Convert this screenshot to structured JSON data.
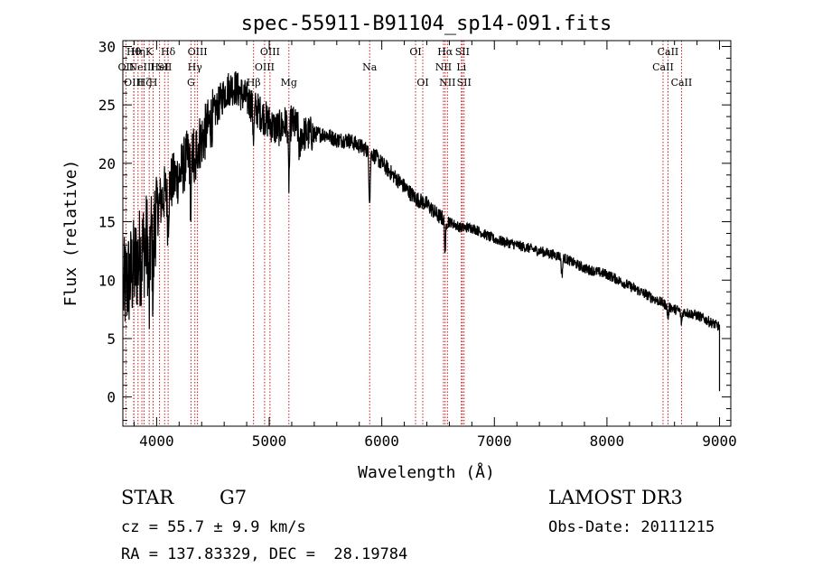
{
  "chart_data": {
    "type": "line",
    "title": "spec-55911-B91104_sp14-091.fits",
    "xlabel": "Wavelength (Å)",
    "ylabel": "Flux (relative)",
    "xlim": [
      3700,
      9100
    ],
    "ylim": [
      -2.5,
      30.5
    ],
    "xticks": [
      4000,
      5000,
      6000,
      7000,
      8000,
      9000
    ],
    "yticks": [
      0,
      5,
      10,
      15,
      20,
      25,
      30
    ],
    "continuum": {
      "x": [
        3700,
        3750,
        3800,
        3850,
        3900,
        3950,
        4000,
        4050,
        4100,
        4150,
        4200,
        4250,
        4300,
        4350,
        4400,
        4450,
        4500,
        4550,
        4600,
        4650,
        4700,
        4750,
        4800,
        4850,
        4900,
        4950,
        5000,
        5050,
        5100,
        5150,
        5200,
        5250,
        5300,
        5400,
        5500,
        5600,
        5700,
        5800,
        5900,
        6000,
        6100,
        6200,
        6300,
        6400,
        6500,
        6600,
        6700,
        6800,
        7000,
        7200,
        7400,
        7600,
        7800,
        8000,
        8200,
        8400,
        8600,
        8800,
        9000
      ],
      "values": [
        9,
        10,
        11,
        12,
        13,
        14,
        16,
        17,
        18,
        18.5,
        19,
        20,
        21,
        21.5,
        22,
        23,
        24,
        25,
        26,
        26.5,
        26.5,
        26,
        25.5,
        25,
        24.5,
        24,
        23.5,
        23,
        23,
        23.5,
        23.5,
        23,
        22.5,
        22.5,
        22.5,
        22,
        22,
        21.5,
        21,
        20,
        19,
        18,
        17,
        16.5,
        15.5,
        15,
        14.5,
        14.5,
        13.5,
        13,
        12.5,
        12,
        11,
        10.5,
        9.5,
        8.5,
        7.5,
        7,
        6
      ]
    },
    "absorption_features": [
      {
        "x": 3934,
        "depth": 6
      },
      {
        "x": 3969,
        "depth": 5
      },
      {
        "x": 4101,
        "depth": 3
      },
      {
        "x": 4305,
        "depth": 5
      },
      {
        "x": 4340,
        "depth": 3
      },
      {
        "x": 4861,
        "depth": 2.5
      },
      {
        "x": 5175,
        "depth": 5
      },
      {
        "x": 5270,
        "depth": 2
      },
      {
        "x": 5892,
        "depth": 4
      },
      {
        "x": 6563,
        "depth": 2.5
      },
      {
        "x": 7600,
        "depth": 1.5
      },
      {
        "x": 8542,
        "depth": 1
      },
      {
        "x": 8662,
        "depth": 1
      }
    ],
    "end_drop": {
      "x": 9000,
      "y": 0.5
    },
    "lines": [
      {
        "wave": 3727,
        "label": "OII",
        "row": 1
      },
      {
        "wave": 3797,
        "label": "Hθ",
        "row": 0
      },
      {
        "wave": 3798,
        "label": "OIII",
        "row": 2
      },
      {
        "wave": 3835,
        "label": "Hη",
        "row": 0
      },
      {
        "wave": 3869,
        "label": "NeIII",
        "row": 1
      },
      {
        "wave": 3889,
        "label": "Hζ",
        "row": 2
      },
      {
        "wave": 3934,
        "label": "K",
        "row": 0
      },
      {
        "wave": 3969,
        "label": "H",
        "row": 2
      },
      {
        "wave": 4026,
        "label": "HeI",
        "row": 1
      },
      {
        "wave": 4071,
        "label": "SII",
        "row": 1
      },
      {
        "wave": 4102,
        "label": "Hδ",
        "row": 0
      },
      {
        "wave": 4305,
        "label": "G",
        "row": 2
      },
      {
        "wave": 4340,
        "label": "Hγ",
        "row": 1
      },
      {
        "wave": 4363,
        "label": "OIII",
        "row": 0
      },
      {
        "wave": 4861,
        "label": "Hβ",
        "row": 2
      },
      {
        "wave": 4959,
        "label": "OIII",
        "row": 1
      },
      {
        "wave": 5007,
        "label": "OIII",
        "row": 0
      },
      {
        "wave": 5175,
        "label": "Mg",
        "row": 2
      },
      {
        "wave": 5892,
        "label": "Na",
        "row": 1
      },
      {
        "wave": 6300,
        "label": "OI",
        "row": 0
      },
      {
        "wave": 6364,
        "label": "OI",
        "row": 2
      },
      {
        "wave": 6548,
        "label": "NII",
        "row": 1
      },
      {
        "wave": 6563,
        "label": "Hα",
        "row": 0
      },
      {
        "wave": 6583,
        "label": "NII",
        "row": 2
      },
      {
        "wave": 6707,
        "label": "Li",
        "row": 1
      },
      {
        "wave": 6716,
        "label": "SII",
        "row": 0
      },
      {
        "wave": 6731,
        "label": "SII",
        "row": 2
      },
      {
        "wave": 8498,
        "label": "CaII",
        "row": 1
      },
      {
        "wave": 8542,
        "label": "CaII",
        "row": 0
      },
      {
        "wave": 8662,
        "label": "CaII",
        "row": 2
      }
    ]
  },
  "info": {
    "class_label": "STAR",
    "subclass": "G7",
    "survey": "LAMOST DR3",
    "cz": "cz = 55.7 ± 9.9 km/s",
    "obs_date": "Obs-Date: 20111215",
    "coords": "RA = 137.83329, DEC =  28.19784"
  }
}
